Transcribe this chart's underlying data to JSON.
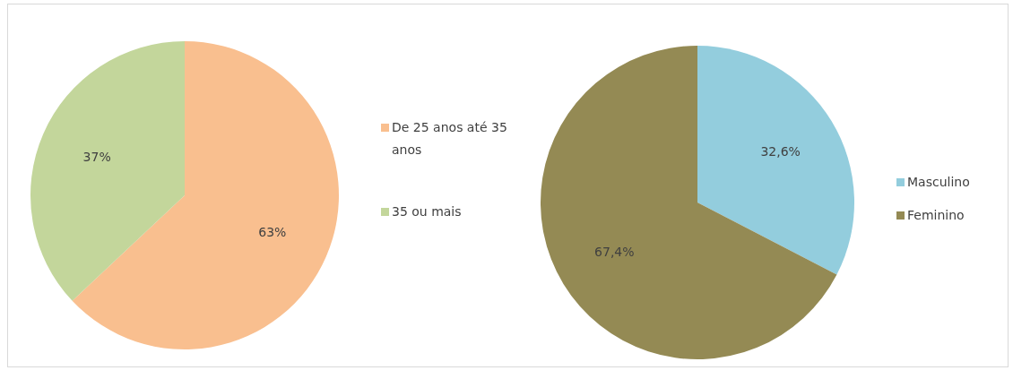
{
  "chart_data": [
    {
      "type": "pie",
      "categories": [
        "De 25 anos até 35 anos",
        "35 ou mais"
      ],
      "values": [
        63,
        37
      ],
      "colors": [
        "#f9bf8f",
        "#c3d69b"
      ],
      "value_labels": [
        "63%",
        "37%"
      ],
      "legend": "right"
    },
    {
      "type": "pie",
      "categories": [
        "Masculino",
        "Feminino"
      ],
      "values": [
        32.6,
        67.4
      ],
      "colors": [
        "#93cddd",
        "#948a54"
      ],
      "value_labels": [
        "32,6%",
        "67,4%"
      ],
      "legend": "right"
    }
  ]
}
